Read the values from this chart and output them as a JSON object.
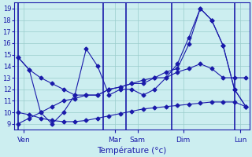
{
  "bg_color": "#cceef0",
  "line_color": "#1a1aaa",
  "grid_color": "#99cccc",
  "xlabel": "Température (°c)",
  "ylim": [
    8.5,
    19.5
  ],
  "yticks": [
    9,
    10,
    11,
    12,
    13,
    14,
    15,
    16,
    17,
    18,
    19
  ],
  "xlim": [
    -0.3,
    20.3
  ],
  "xtick_labels": [
    "Ven",
    "Mar",
    "Sam",
    "Dim",
    "Lun"
  ],
  "xtick_pos": [
    0.5,
    8.5,
    10.5,
    14.5,
    19.5
  ],
  "vline_pos": [
    0.0,
    7.5,
    9.5,
    13.5,
    19.0
  ],
  "series": [
    [
      14.8,
      13.7,
      13.0,
      12.5,
      12.0,
      11.5,
      11.5,
      11.5,
      12.0,
      12.2,
      12.5,
      12.8,
      13.0,
      13.5,
      13.8,
      15.9,
      19.0,
      18.0,
      15.8,
      12.0,
      10.5
    ],
    [
      10.0,
      9.8,
      9.5,
      9.3,
      9.2,
      9.2,
      9.3,
      9.5,
      9.7,
      9.9,
      10.1,
      10.3,
      10.4,
      10.5,
      10.6,
      10.7,
      10.8,
      10.9,
      10.9,
      10.9,
      10.5
    ],
    [
      14.8,
      13.7,
      10.0,
      9.0,
      10.0,
      11.5,
      15.5,
      14.0,
      11.5,
      12.0,
      12.0,
      11.5,
      12.0,
      13.0,
      14.2,
      16.5,
      19.0,
      18.0,
      15.8,
      12.0,
      10.5
    ],
    [
      9.0,
      9.5,
      10.0,
      10.5,
      11.0,
      11.2,
      11.5,
      11.5,
      12.0,
      12.2,
      12.5,
      12.5,
      13.0,
      13.0,
      13.5,
      13.8,
      14.2,
      13.8,
      13.0,
      13.0,
      13.0
    ]
  ]
}
